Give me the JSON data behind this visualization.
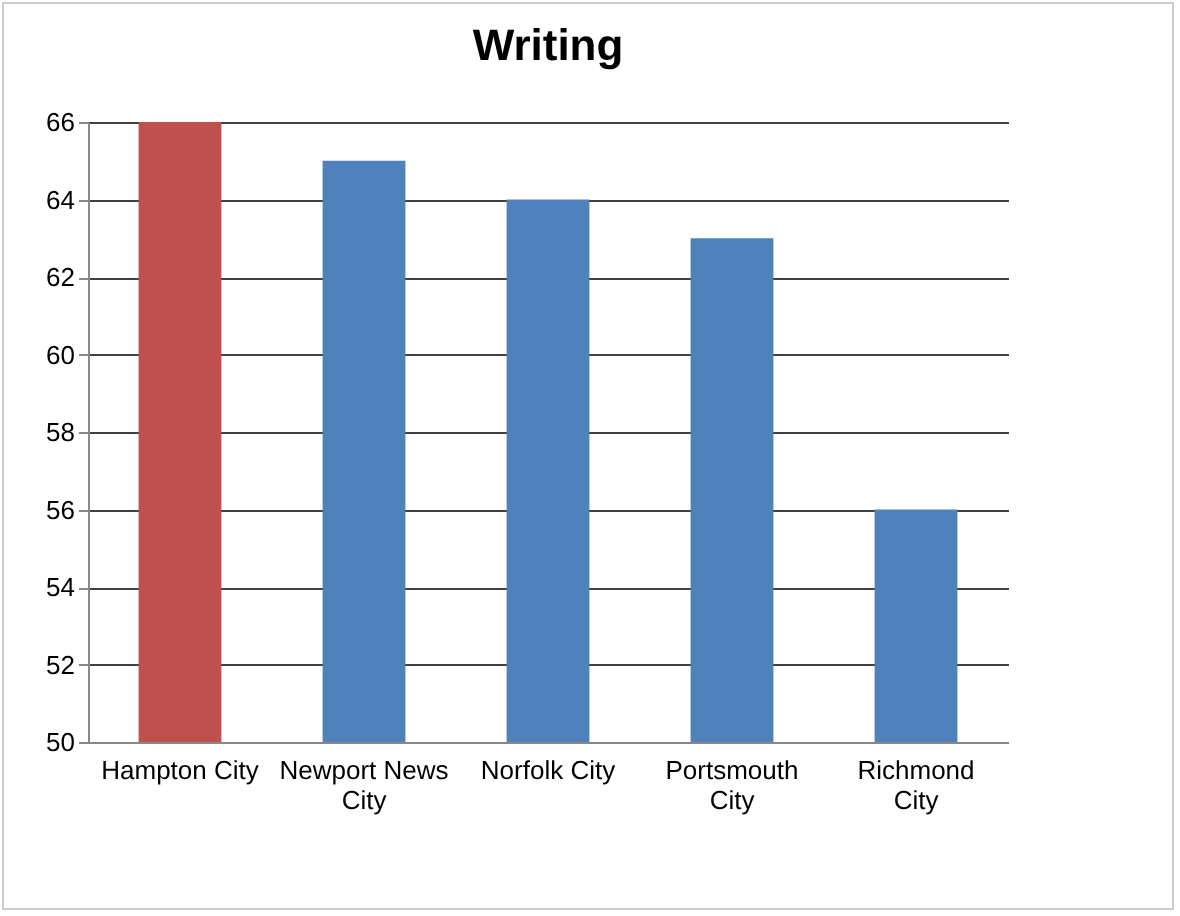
{
  "chart_data": {
    "type": "bar",
    "title": "Writing",
    "categories": [
      "Hampton City",
      "Newport News City",
      "Norfolk City",
      "Portsmouth City",
      "Richmond City"
    ],
    "values": [
      66,
      65,
      64,
      63,
      56
    ],
    "colors": [
      "#c0504d",
      "#4f81bd",
      "#4f81bd",
      "#4f81bd",
      "#4f81bd"
    ],
    "ylim": [
      50,
      66
    ],
    "yticks": [
      50,
      52,
      54,
      56,
      58,
      60,
      62,
      64,
      66
    ],
    "grid": true
  }
}
